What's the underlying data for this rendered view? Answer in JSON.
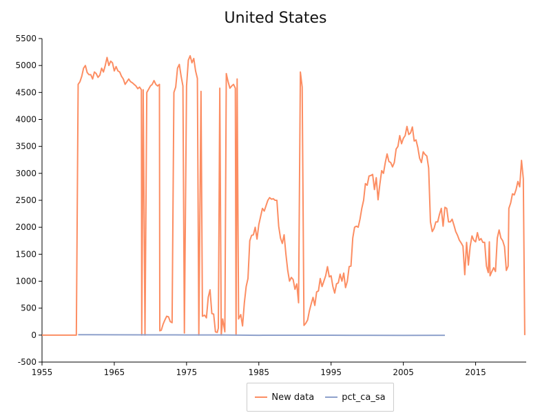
{
  "chart_data": {
    "type": "line",
    "title": "United States",
    "xlabel": "",
    "ylabel": "",
    "xlim": [
      1955,
      2022
    ],
    "ylim": [
      -500,
      5500
    ],
    "x_ticks": [
      "1955",
      "1965",
      "1975",
      "1985",
      "1995",
      "2005",
      "2015"
    ],
    "y_ticks": [
      "-500",
      "0",
      "500",
      "1000",
      "1500",
      "2000",
      "2500",
      "3000",
      "3500",
      "4000",
      "4500",
      "5000",
      "5500"
    ],
    "grid": false,
    "legend_position": "bottom-center",
    "series": [
      {
        "name": "New data",
        "color": "#fc8d62",
        "points": [
          [
            1955.0,
            0
          ],
          [
            1959.75,
            0
          ],
          [
            1960.0,
            4650
          ],
          [
            1960.25,
            4700
          ],
          [
            1960.5,
            4800
          ],
          [
            1960.75,
            4950
          ],
          [
            1961.0,
            5000
          ],
          [
            1961.25,
            4870
          ],
          [
            1961.5,
            4830
          ],
          [
            1961.75,
            4830
          ],
          [
            1962.0,
            4750
          ],
          [
            1962.25,
            4880
          ],
          [
            1962.5,
            4850
          ],
          [
            1962.75,
            4780
          ],
          [
            1963.0,
            4820
          ],
          [
            1963.25,
            4950
          ],
          [
            1963.5,
            4880
          ],
          [
            1963.75,
            5000
          ],
          [
            1964.0,
            5150
          ],
          [
            1964.25,
            5000
          ],
          [
            1964.5,
            5080
          ],
          [
            1964.75,
            5050
          ],
          [
            1965.0,
            4900
          ],
          [
            1965.25,
            4980
          ],
          [
            1965.5,
            4900
          ],
          [
            1965.75,
            4880
          ],
          [
            1966.0,
            4800
          ],
          [
            1966.25,
            4750
          ],
          [
            1966.5,
            4650
          ],
          [
            1966.75,
            4700
          ],
          [
            1967.0,
            4750
          ],
          [
            1967.25,
            4700
          ],
          [
            1967.5,
            4680
          ],
          [
            1967.75,
            4650
          ],
          [
            1968.0,
            4620
          ],
          [
            1968.25,
            4570
          ],
          [
            1968.5,
            4600
          ],
          [
            1968.75,
            4550
          ],
          [
            1968.8,
            0
          ],
          [
            1969.0,
            4550
          ],
          [
            1969.25,
            0
          ],
          [
            1969.5,
            4500
          ],
          [
            1969.75,
            4560
          ],
          [
            1970.0,
            4620
          ],
          [
            1970.25,
            4650
          ],
          [
            1970.5,
            4720
          ],
          [
            1970.75,
            4650
          ],
          [
            1971.0,
            4620
          ],
          [
            1971.25,
            4650
          ],
          [
            1971.3,
            80
          ],
          [
            1971.5,
            90
          ],
          [
            1971.75,
            200
          ],
          [
            1972.0,
            280
          ],
          [
            1972.25,
            350
          ],
          [
            1972.5,
            340
          ],
          [
            1972.75,
            250
          ],
          [
            1973.0,
            230
          ],
          [
            1973.25,
            4500
          ],
          [
            1973.5,
            4600
          ],
          [
            1973.75,
            4950
          ],
          [
            1974.0,
            5020
          ],
          [
            1974.25,
            4800
          ],
          [
            1974.5,
            4620
          ],
          [
            1974.7,
            40
          ],
          [
            1975.0,
            4620
          ],
          [
            1975.25,
            5100
          ],
          [
            1975.5,
            5180
          ],
          [
            1975.75,
            5050
          ],
          [
            1976.0,
            5130
          ],
          [
            1976.25,
            4900
          ],
          [
            1976.5,
            4760
          ],
          [
            1976.7,
            0
          ],
          [
            1977.0,
            4520
          ],
          [
            1977.2,
            350
          ],
          [
            1977.5,
            370
          ],
          [
            1977.75,
            320
          ],
          [
            1978.0,
            700
          ],
          [
            1978.25,
            840
          ],
          [
            1978.5,
            400
          ],
          [
            1978.75,
            390
          ],
          [
            1979.0,
            60
          ],
          [
            1979.25,
            50
          ],
          [
            1979.4,
            130
          ],
          [
            1979.6,
            4580
          ],
          [
            1979.8,
            0
          ],
          [
            1980.0,
            300
          ],
          [
            1980.3,
            60
          ],
          [
            1980.5,
            4850
          ],
          [
            1980.75,
            4700
          ],
          [
            1981.0,
            4580
          ],
          [
            1981.25,
            4620
          ],
          [
            1981.5,
            4650
          ],
          [
            1981.75,
            4580
          ],
          [
            1981.85,
            0
          ],
          [
            1982.0,
            4750
          ],
          [
            1982.2,
            300
          ],
          [
            1982.5,
            380
          ],
          [
            1982.75,
            170
          ],
          [
            1983.0,
            600
          ],
          [
            1983.25,
            900
          ],
          [
            1983.5,
            1050
          ],
          [
            1983.75,
            1750
          ],
          [
            1984.0,
            1850
          ],
          [
            1984.25,
            1860
          ],
          [
            1984.5,
            2000
          ],
          [
            1984.75,
            1780
          ],
          [
            1985.0,
            2050
          ],
          [
            1985.25,
            2200
          ],
          [
            1985.5,
            2350
          ],
          [
            1985.75,
            2300
          ],
          [
            1986.0,
            2400
          ],
          [
            1986.25,
            2500
          ],
          [
            1986.5,
            2550
          ],
          [
            1986.75,
            2520
          ],
          [
            1987.0,
            2530
          ],
          [
            1987.25,
            2500
          ],
          [
            1987.5,
            2500
          ],
          [
            1987.75,
            2020
          ],
          [
            1988.0,
            1800
          ],
          [
            1988.25,
            1700
          ],
          [
            1988.5,
            1860
          ],
          [
            1988.75,
            1500
          ],
          [
            1989.0,
            1200
          ],
          [
            1989.25,
            1000
          ],
          [
            1989.5,
            1070
          ],
          [
            1989.75,
            1030
          ],
          [
            1990.0,
            850
          ],
          [
            1990.25,
            950
          ],
          [
            1990.5,
            600
          ],
          [
            1990.75,
            4880
          ],
          [
            1991.0,
            4600
          ],
          [
            1991.25,
            180
          ],
          [
            1991.5,
            220
          ],
          [
            1991.75,
            280
          ],
          [
            1992.0,
            450
          ],
          [
            1992.25,
            580
          ],
          [
            1992.5,
            700
          ],
          [
            1992.75,
            550
          ],
          [
            1993.0,
            800
          ],
          [
            1993.25,
            820
          ],
          [
            1993.5,
            1050
          ],
          [
            1993.75,
            900
          ],
          [
            1994.0,
            1000
          ],
          [
            1994.25,
            1100
          ],
          [
            1994.5,
            1270
          ],
          [
            1994.75,
            1080
          ],
          [
            1995.0,
            1100
          ],
          [
            1995.25,
            900
          ],
          [
            1995.5,
            780
          ],
          [
            1995.75,
            950
          ],
          [
            1996.0,
            970
          ],
          [
            1996.25,
            1130
          ],
          [
            1996.5,
            1000
          ],
          [
            1996.75,
            1150
          ],
          [
            1997.0,
            880
          ],
          [
            1997.25,
            1000
          ],
          [
            1997.5,
            1270
          ],
          [
            1997.75,
            1280
          ],
          [
            1998.0,
            1800
          ],
          [
            1998.25,
            2000
          ],
          [
            1998.5,
            2020
          ],
          [
            1998.75,
            2000
          ],
          [
            1999.0,
            2150
          ],
          [
            1999.25,
            2350
          ],
          [
            1999.5,
            2500
          ],
          [
            1999.75,
            2810
          ],
          [
            2000.0,
            2780
          ],
          [
            2000.25,
            2950
          ],
          [
            2000.5,
            2960
          ],
          [
            2000.75,
            2980
          ],
          [
            2001.0,
            2700
          ],
          [
            2001.25,
            2920
          ],
          [
            2001.5,
            2510
          ],
          [
            2001.75,
            2800
          ],
          [
            2002.0,
            3050
          ],
          [
            2002.25,
            3000
          ],
          [
            2002.5,
            3200
          ],
          [
            2002.75,
            3360
          ],
          [
            2003.0,
            3220
          ],
          [
            2003.25,
            3200
          ],
          [
            2003.5,
            3120
          ],
          [
            2003.75,
            3200
          ],
          [
            2004.0,
            3450
          ],
          [
            2004.25,
            3500
          ],
          [
            2004.5,
            3700
          ],
          [
            2004.75,
            3550
          ],
          [
            2005.0,
            3650
          ],
          [
            2005.25,
            3700
          ],
          [
            2005.5,
            3870
          ],
          [
            2005.75,
            3720
          ],
          [
            2006.0,
            3750
          ],
          [
            2006.25,
            3860
          ],
          [
            2006.5,
            3600
          ],
          [
            2006.75,
            3620
          ],
          [
            2007.0,
            3480
          ],
          [
            2007.25,
            3280
          ],
          [
            2007.5,
            3200
          ],
          [
            2007.75,
            3400
          ],
          [
            2008.0,
            3350
          ],
          [
            2008.25,
            3320
          ],
          [
            2008.5,
            3100
          ],
          [
            2008.75,
            2100
          ],
          [
            2009.0,
            1920
          ],
          [
            2009.25,
            1980
          ],
          [
            2009.5,
            2100
          ],
          [
            2009.75,
            2100
          ],
          [
            2010.0,
            2240
          ],
          [
            2010.25,
            2350
          ],
          [
            2010.5,
            2020
          ],
          [
            2010.75,
            2370
          ],
          [
            2011.0,
            2350
          ],
          [
            2011.25,
            2100
          ],
          [
            2011.5,
            2100
          ],
          [
            2011.75,
            2150
          ],
          [
            2012.0,
            2040
          ],
          [
            2012.25,
            1920
          ],
          [
            2012.5,
            1850
          ],
          [
            2012.75,
            1760
          ],
          [
            2013.0,
            1710
          ],
          [
            2013.25,
            1650
          ],
          [
            2013.5,
            1120
          ],
          [
            2013.75,
            1720
          ],
          [
            2014.0,
            1300
          ],
          [
            2014.25,
            1650
          ],
          [
            2014.5,
            1840
          ],
          [
            2014.75,
            1760
          ],
          [
            2015.0,
            1730
          ],
          [
            2015.25,
            1900
          ],
          [
            2015.5,
            1760
          ],
          [
            2015.75,
            1790
          ],
          [
            2016.0,
            1720
          ],
          [
            2016.25,
            1720
          ],
          [
            2016.5,
            1280
          ],
          [
            2016.75,
            1160
          ],
          [
            2016.9,
            1730
          ],
          [
            2017.0,
            1100
          ],
          [
            2017.25,
            1180
          ],
          [
            2017.5,
            1250
          ],
          [
            2017.75,
            1180
          ],
          [
            2018.0,
            1800
          ],
          [
            2018.25,
            1950
          ],
          [
            2018.5,
            1800
          ],
          [
            2018.75,
            1750
          ],
          [
            2019.0,
            1640
          ],
          [
            2019.25,
            1200
          ],
          [
            2019.5,
            1280
          ],
          [
            2019.6,
            2350
          ],
          [
            2019.85,
            2450
          ],
          [
            2020.1,
            2620
          ],
          [
            2020.35,
            2600
          ],
          [
            2020.6,
            2700
          ],
          [
            2020.85,
            2850
          ],
          [
            2021.1,
            2750
          ],
          [
            2021.35,
            3240
          ],
          [
            2021.6,
            2900
          ],
          [
            2021.8,
            0
          ]
        ]
      },
      {
        "name": "pct_ca_sa",
        "color": "#8da0cb",
        "points": [
          [
            1960.0,
            8
          ],
          [
            1965.0,
            6
          ],
          [
            1970.0,
            5
          ],
          [
            1975.0,
            3
          ],
          [
            1980.0,
            2
          ],
          [
            1985.0,
            -3
          ],
          [
            1990.0,
            -2
          ],
          [
            1995.0,
            -2
          ],
          [
            2000.0,
            -4
          ],
          [
            2005.0,
            -6
          ],
          [
            2010.0,
            -3
          ],
          [
            2010.75,
            -3
          ]
        ]
      }
    ]
  }
}
